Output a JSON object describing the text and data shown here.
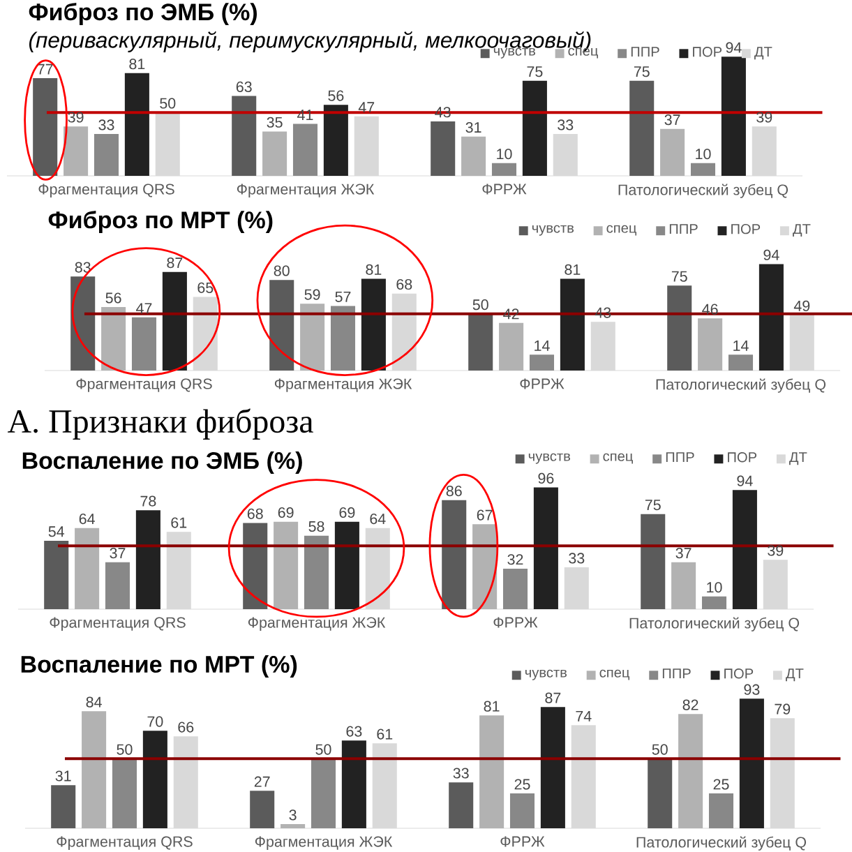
{
  "chart_data": [
    {
      "type": "bar",
      "title": "Фиброз по ЭМБ (%)",
      "subtitle": "(периваскулярный, перимускулярный, мелкоочаговый)",
      "categories": [
        "Фрагментация QRS",
        "Фрагментация ЖЭК",
        "ФРРЖ",
        "Патологический зубец Q"
      ],
      "series": [
        {
          "name": "чувств",
          "color": "#5b5b5b",
          "values": [
            77,
            63,
            43,
            75
          ]
        },
        {
          "name": "спец",
          "color": "#b2b2b2",
          "values": [
            39,
            35,
            31,
            37
          ]
        },
        {
          "name": "ППР",
          "color": "#888888",
          "values": [
            33,
            41,
            10,
            10
          ]
        },
        {
          "name": "ПОР",
          "color": "#222222",
          "values": [
            81,
            56,
            75,
            94
          ]
        },
        {
          "name": "ДТ",
          "color": "#d9d9d9",
          "values": [
            50,
            47,
            33,
            39
          ]
        }
      ],
      "data_labels": true,
      "legend": "top right",
      "ref_lines": [
        {
          "axis": "y",
          "value": 50,
          "color": "#c00000"
        }
      ]
    },
    {
      "type": "bar",
      "title": "Фиброз по МРТ (%)",
      "categories": [
        "Фрагментация QRS",
        "Фрагментация ЖЭК",
        "ФРРЖ",
        "Патологический зубец Q"
      ],
      "series": [
        {
          "name": "чувств",
          "color": "#5b5b5b",
          "values": [
            83,
            80,
            50,
            75
          ]
        },
        {
          "name": "спец",
          "color": "#b2b2b2",
          "values": [
            56,
            59,
            42,
            46
          ]
        },
        {
          "name": "ППР",
          "color": "#888888",
          "values": [
            47,
            57,
            14,
            14
          ]
        },
        {
          "name": "ПОР",
          "color": "#222222",
          "values": [
            87,
            81,
            81,
            94
          ]
        },
        {
          "name": "ДТ",
          "color": "#d9d9d9",
          "values": [
            65,
            68,
            43,
            49
          ]
        }
      ],
      "data_labels": true,
      "legend": "top right",
      "ref_lines": [
        {
          "axis": "y",
          "value": 50,
          "color": "#8b0000"
        }
      ],
      "annotations": [
        "A. Признаки фиброза"
      ]
    },
    {
      "type": "bar",
      "title": "Воспаление по ЭМБ (%)",
      "categories": [
        "Фрагментация QRS",
        "Фрагментация ЖЭК",
        "ФРРЖ",
        "Патологический зубец Q"
      ],
      "series": [
        {
          "name": "чувств",
          "color": "#5b5b5b",
          "values": [
            54,
            68,
            86,
            75
          ]
        },
        {
          "name": "спец",
          "color": "#b2b2b2",
          "values": [
            64,
            69,
            67,
            37
          ]
        },
        {
          "name": "ППР",
          "color": "#888888",
          "values": [
            37,
            58,
            32,
            10
          ]
        },
        {
          "name": "ПОР",
          "color": "#222222",
          "values": [
            78,
            69,
            96,
            94
          ]
        },
        {
          "name": "ДТ",
          "color": "#d9d9d9",
          "values": [
            61,
            64,
            33,
            39
          ]
        }
      ],
      "data_labels": true,
      "legend": "top right",
      "ref_lines": [
        {
          "axis": "y",
          "value": 50,
          "color": "#8b0000"
        }
      ]
    },
    {
      "type": "bar",
      "title": "Воспаление по МРТ (%)",
      "categories": [
        "Фрагментация QRS",
        "Фрагментация ЖЭК",
        "ФРРЖ",
        "Патологический зубец Q"
      ],
      "series": [
        {
          "name": "чувств",
          "color": "#5b5b5b",
          "values": [
            31,
            27,
            33,
            50
          ]
        },
        {
          "name": "спец",
          "color": "#b2b2b2",
          "values": [
            84,
            3,
            81,
            82
          ]
        },
        {
          "name": "ППР",
          "color": "#888888",
          "values": [
            50,
            50,
            25,
            25
          ]
        },
        {
          "name": "ПОР",
          "color": "#222222",
          "values": [
            70,
            63,
            87,
            93
          ]
        },
        {
          "name": "ДТ",
          "color": "#d9d9d9",
          "values": [
            66,
            61,
            74,
            79
          ]
        }
      ],
      "data_labels": true,
      "legend": "top right",
      "ref_lines": [
        {
          "axis": "y",
          "value": 50,
          "color": "#8b0000"
        }
      ]
    }
  ]
}
